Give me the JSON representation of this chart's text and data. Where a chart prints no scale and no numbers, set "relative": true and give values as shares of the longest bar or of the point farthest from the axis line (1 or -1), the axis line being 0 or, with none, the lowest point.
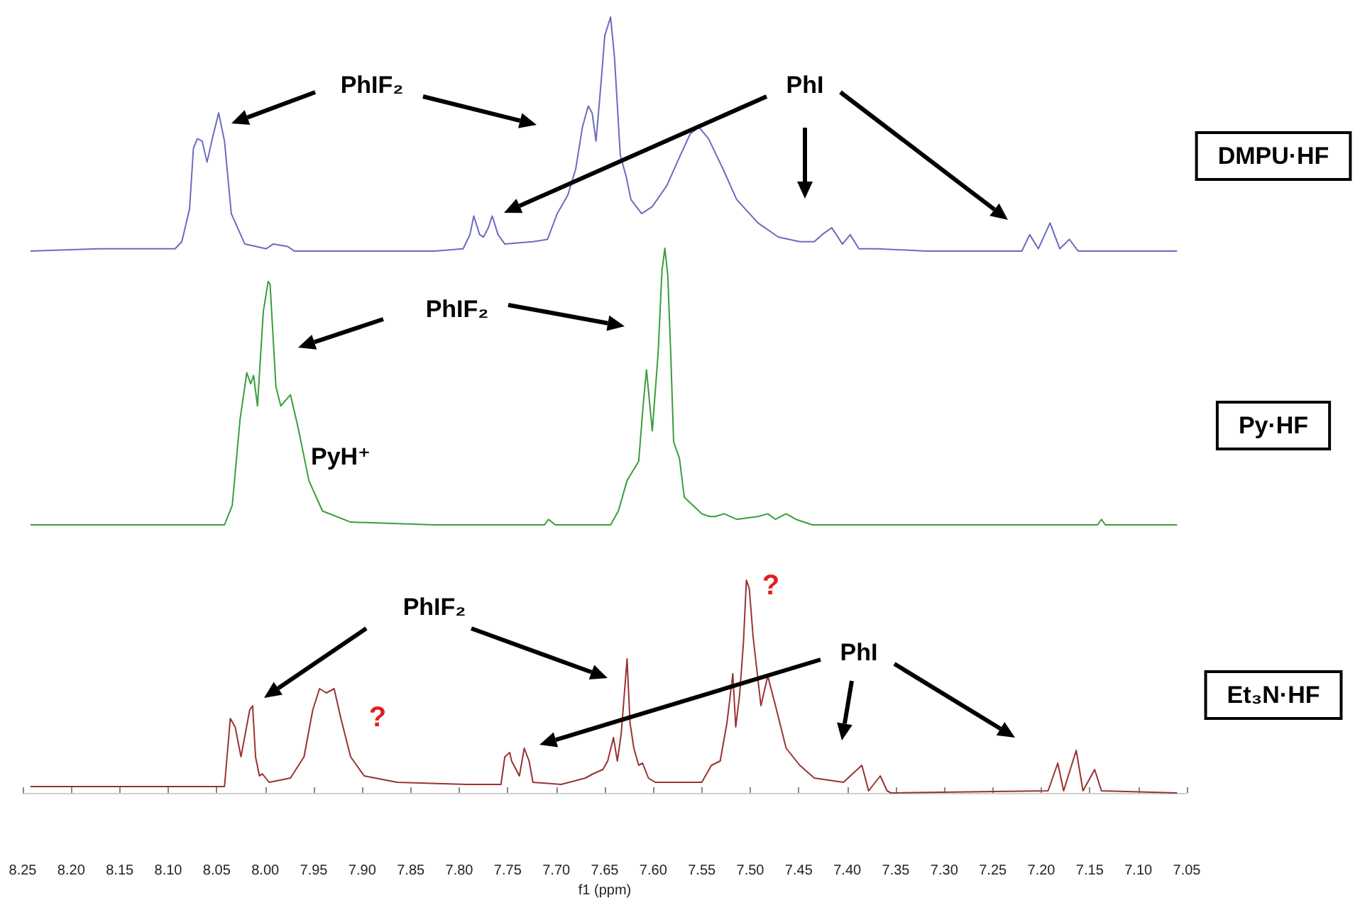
{
  "chart_data": [
    {
      "type": "line",
      "relative": true,
      "xlim": [
        8.25,
        7.05
      ],
      "tick_labels": false,
      "marker": "none",
      "line_style": "solid",
      "series": [
        {
          "name": "DMPU·HF",
          "color": "#6b6bbf",
          "x": [
            8.242,
            8.172,
            8.093,
            8.086,
            8.078,
            8.074,
            8.07,
            8.065,
            8.06,
            8.054,
            8.048,
            8.042,
            8.035,
            8.021,
            7.999,
            7.992,
            7.977,
            7.97,
            7.898,
            7.825,
            7.796,
            7.789,
            7.785,
            7.779,
            7.775,
            7.77,
            7.766,
            7.76,
            7.753,
            7.724,
            7.709,
            7.699,
            7.688,
            7.68,
            7.673,
            7.667,
            7.663,
            7.659,
            7.654,
            7.65,
            7.644,
            7.64,
            7.634,
            7.628,
            7.623,
            7.612,
            7.601,
            7.586,
            7.572,
            7.562,
            7.553,
            7.543,
            7.528,
            7.514,
            7.492,
            7.471,
            7.449,
            7.434,
            7.426,
            7.416,
            7.405,
            7.397,
            7.388,
            7.369,
            7.319,
            7.246,
            7.22,
            7.212,
            7.203,
            7.191,
            7.181,
            7.171,
            7.162,
            7.116,
            7.06
          ],
          "values": [
            0,
            0.01,
            0.01,
            0.04,
            0.18,
            0.44,
            0.48,
            0.47,
            0.38,
            0.49,
            0.59,
            0.47,
            0.16,
            0.03,
            0.01,
            0.03,
            0.02,
            0,
            0,
            0,
            0.01,
            0.07,
            0.15,
            0.07,
            0.06,
            0.1,
            0.15,
            0.07,
            0.03,
            0.04,
            0.05,
            0.16,
            0.24,
            0.35,
            0.53,
            0.62,
            0.59,
            0.47,
            0.71,
            0.92,
            1,
            0.83,
            0.41,
            0.32,
            0.22,
            0.16,
            0.19,
            0.28,
            0.41,
            0.5,
            0.53,
            0.48,
            0.35,
            0.22,
            0.12,
            0.06,
            0.04,
            0.04,
            0.07,
            0.1,
            0.03,
            0.07,
            0.01,
            0.01,
            0,
            0,
            0,
            0.07,
            0.01,
            0.12,
            0.01,
            0.05,
            0,
            0,
            0
          ]
        }
      ],
      "annotations": [
        "PhIF₂",
        "PhI"
      ]
    },
    {
      "type": "line",
      "relative": true,
      "xlim": [
        8.25,
        7.05
      ],
      "tick_labels": false,
      "marker": "none",
      "line_style": "solid",
      "series": [
        {
          "name": "Py·HF",
          "color": "#3a9e3a",
          "x": [
            8.242,
            8.042,
            8.034,
            8.026,
            8.019,
            8.015,
            8.012,
            8.008,
            8.002,
            7.997,
            7.995,
            7.989,
            7.984,
            7.974,
            7.966,
            7.955,
            7.941,
            7.912,
            7.825,
            7.712,
            7.708,
            7.701,
            7.644,
            7.636,
            7.627,
            7.615,
            7.61,
            7.607,
            7.601,
            7.595,
            7.591,
            7.588,
            7.585,
            7.582,
            7.579,
            7.573,
            7.568,
            7.559,
            7.55,
            7.542,
            7.536,
            7.527,
            7.514,
            7.492,
            7.482,
            7.474,
            7.463,
            7.453,
            7.436,
            7.319,
            7.142,
            7.138,
            7.134,
            7.06
          ],
          "values": [
            0,
            0,
            0.07,
            0.38,
            0.55,
            0.51,
            0.54,
            0.43,
            0.77,
            0.88,
            0.87,
            0.5,
            0.43,
            0.47,
            0.35,
            0.16,
            0.05,
            0.01,
            0,
            0,
            0.02,
            0,
            0,
            0.05,
            0.16,
            0.23,
            0.45,
            0.56,
            0.34,
            0.62,
            0.92,
            1,
            0.9,
            0.62,
            0.3,
            0.24,
            0.1,
            0.07,
            0.04,
            0.03,
            0.03,
            0.04,
            0.02,
            0.03,
            0.04,
            0.02,
            0.04,
            0.02,
            0,
            0,
            0,
            0.02,
            0,
            0
          ]
        }
      ],
      "annotations": [
        "PhIF₂",
        "PyH⁺"
      ]
    },
    {
      "type": "line",
      "relative": true,
      "xlim": [
        8.25,
        7.05
      ],
      "tick_labels": "x",
      "marker": "none",
      "line_style": "solid",
      "xlabel": "f1 (ppm)",
      "xticks": [
        8.25,
        {
          "value": 8.2,
          "label": "8.20"
        },
        8.15,
        {
          "value": 8.1,
          "label": "8.10"
        },
        8.05,
        {
          "value": 8,
          "label": "8.00"
        },
        7.95,
        {
          "value": 7.9,
          "label": "7.90"
        },
        7.85,
        {
          "value": 7.8,
          "label": "7.80"
        },
        7.75,
        {
          "value": 7.7,
          "label": "7.70"
        },
        7.65,
        {
          "value": 7.6,
          "label": "7.60"
        },
        7.55,
        {
          "value": 7.5,
          "label": "7.50"
        },
        7.45,
        {
          "value": 7.4,
          "label": "7.40"
        },
        7.35,
        {
          "value": 7.3,
          "label": "7.30"
        },
        7.25,
        {
          "value": 7.2,
          "label": "7.20"
        },
        7.15,
        {
          "value": 7.1,
          "label": "7.10"
        },
        7.05
      ],
      "series": [
        {
          "name": "Et₃N·HF",
          "color": "#993333",
          "x": [
            8.242,
            8.042,
            8.036,
            8.031,
            8.025,
            8.016,
            8.013,
            8.01,
            8.006,
            8.003,
            7.996,
            7.974,
            7.96,
            7.951,
            7.944,
            7.937,
            7.929,
            7.922,
            7.912,
            7.898,
            7.864,
            7.792,
            7.757,
            7.753,
            7.748,
            7.746,
            7.738,
            7.733,
            7.728,
            7.724,
            7.695,
            7.67,
            7.662,
            7.652,
            7.647,
            7.641,
            7.637,
            7.633,
            7.627,
            7.624,
            7.62,
            7.615,
            7.611,
            7.605,
            7.598,
            7.55,
            7.54,
            7.531,
            7.524,
            7.518,
            7.515,
            7.511,
            7.507,
            7.504,
            7.501,
            7.497,
            7.489,
            7.482,
            7.474,
            7.463,
            7.449,
            7.434,
            7.404,
            7.385,
            7.378,
            7.366,
            7.359,
            7.355,
            7.193,
            7.183,
            7.177,
            7.164,
            7.157,
            7.145,
            7.138,
            7.06
          ],
          "values": [
            0.03,
            0.03,
            0.35,
            0.31,
            0.17,
            0.39,
            0.41,
            0.17,
            0.08,
            0.09,
            0.05,
            0.07,
            0.17,
            0.39,
            0.49,
            0.47,
            0.49,
            0.35,
            0.17,
            0.08,
            0.05,
            0.04,
            0.04,
            0.17,
            0.19,
            0.15,
            0.08,
            0.21,
            0.15,
            0.05,
            0.04,
            0.07,
            0.09,
            0.11,
            0.15,
            0.26,
            0.15,
            0.28,
            0.63,
            0.33,
            0.21,
            0.13,
            0.14,
            0.07,
            0.05,
            0.05,
            0.13,
            0.15,
            0.33,
            0.56,
            0.31,
            0.46,
            0.71,
            1,
            0.96,
            0.73,
            0.41,
            0.55,
            0.41,
            0.21,
            0.13,
            0.07,
            0.05,
            0.13,
            0.01,
            0.08,
            0.01,
            0,
            0.01,
            0.14,
            0.01,
            0.2,
            0.01,
            0.11,
            0.01,
            0
          ]
        }
      ],
      "annotations": [
        "PhIF₂",
        "PhI",
        "?",
        "?"
      ]
    }
  ]
}
